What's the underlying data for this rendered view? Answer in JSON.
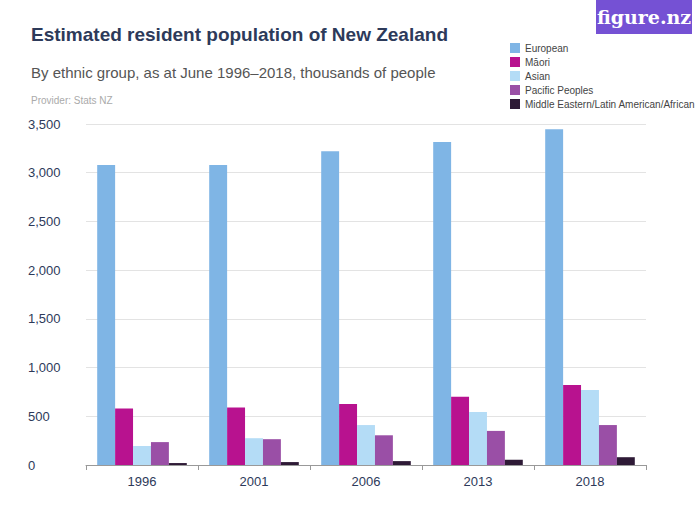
{
  "chart_data": {
    "type": "bar",
    "title": "Estimated resident population of New Zealand",
    "subtitle": "By ethnic group, as at June 1996–2018, thousands of people",
    "annotations": [
      "Provider: Stats NZ",
      "figure.nz"
    ],
    "categories": [
      "1996",
      "2001",
      "2006",
      "2013",
      "2018"
    ],
    "series": [
      {
        "name": "European",
        "color": "#7fb5e5",
        "values": [
          3080,
          3080,
          3220,
          3315,
          3445
        ]
      },
      {
        "name": "Māori",
        "color": "#b8128f",
        "values": [
          580,
          590,
          625,
          700,
          820
        ]
      },
      {
        "name": "Asian",
        "color": "#b4dcf6",
        "values": [
          195,
          275,
          410,
          545,
          770
        ]
      },
      {
        "name": "Pacific Peoples",
        "color": "#9a4fa6",
        "values": [
          235,
          265,
          305,
          350,
          410
        ]
      },
      {
        "name": "Middle Eastern/Latin American/African",
        "color": "#2e1a36",
        "values": [
          20,
          30,
          40,
          55,
          80
        ]
      }
    ],
    "ylim": [
      0,
      3500
    ],
    "yticks": [
      0,
      500,
      {
        "value": 1000,
        "label": "1,000"
      },
      {
        "value": 1500,
        "label": "1,500"
      },
      {
        "value": 2000,
        "label": "2,000"
      },
      {
        "value": 2500,
        "label": "2,500"
      },
      {
        "value": 3000,
        "label": "3,000"
      },
      {
        "value": 3500,
        "label": "3,500"
      }
    ],
    "grid": true,
    "legend": "top-right"
  }
}
